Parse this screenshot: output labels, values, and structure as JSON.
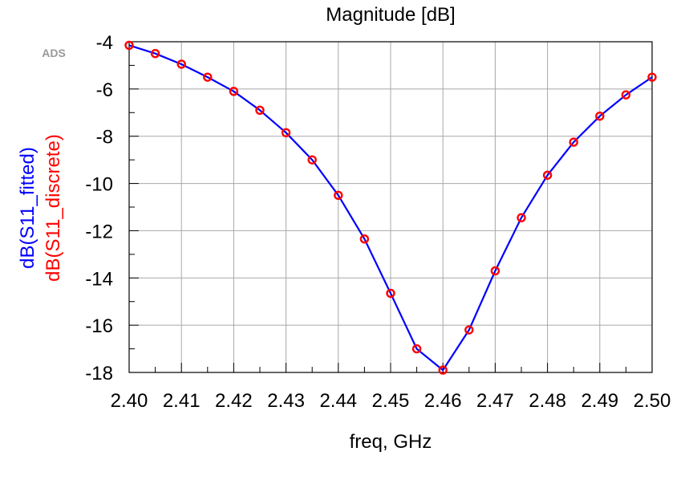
{
  "logo": "ADS",
  "chart_data": {
    "type": "line",
    "title": "Magnitude [dB]",
    "xlabel": "freq, GHz",
    "xlim": [
      2.4,
      2.5
    ],
    "ylim": [
      -18,
      -4
    ],
    "x_ticks": [
      "2.40",
      "2.41",
      "2.42",
      "2.43",
      "2.44",
      "2.45",
      "2.46",
      "2.47",
      "2.48",
      "2.49",
      "2.50"
    ],
    "y_ticks": [
      "-4",
      "-6",
      "-8",
      "-10",
      "-12",
      "-14",
      "-16",
      "-18"
    ],
    "grid": true,
    "x": [
      2.4,
      2.405,
      2.41,
      2.415,
      2.42,
      2.425,
      2.43,
      2.435,
      2.44,
      2.445,
      2.45,
      2.455,
      2.46,
      2.465,
      2.47,
      2.475,
      2.48,
      2.485,
      2.49,
      2.495,
      2.5
    ],
    "series": [
      {
        "name": "dB(S11_fitted)",
        "color": "#0000ff",
        "style": "line",
        "values": [
          -4.15,
          -4.5,
          -4.95,
          -5.5,
          -6.1,
          -6.9,
          -7.85,
          -9.0,
          -10.5,
          -12.35,
          -14.65,
          -17.0,
          -17.9,
          -16.2,
          -13.7,
          -11.45,
          -9.65,
          -8.25,
          -7.15,
          -6.25,
          -5.5
        ]
      },
      {
        "name": "dB(S11_discrete)",
        "color": "#ff0000",
        "style": "markers",
        "values": [
          -4.15,
          -4.5,
          -4.95,
          -5.5,
          -6.1,
          -6.9,
          -7.85,
          -9.0,
          -10.5,
          -12.35,
          -14.65,
          -17.0,
          -17.9,
          -16.2,
          -13.7,
          -11.45,
          -9.65,
          -8.25,
          -7.15,
          -6.25,
          -5.5
        ]
      }
    ]
  }
}
